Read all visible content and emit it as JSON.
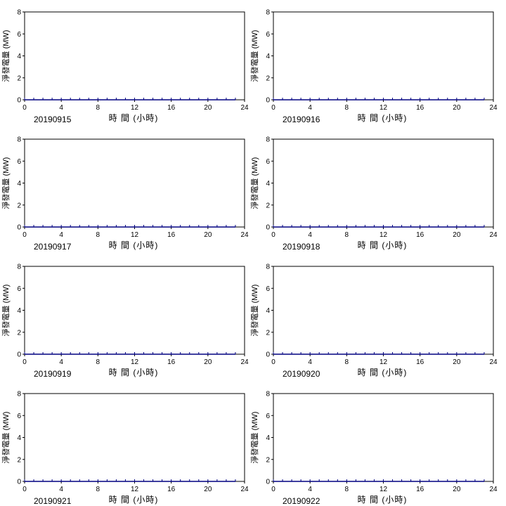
{
  "chart_data": [
    {
      "type": "line",
      "date_label": "20190915",
      "xlabel": "時 間 (小時)",
      "ylabel": "淨發電量 (MW)",
      "xlim": [
        0,
        24
      ],
      "ylim": [
        0,
        8
      ],
      "xticks": [
        0,
        4,
        8,
        12,
        16,
        20,
        24
      ],
      "yticks": [
        0,
        2,
        4,
        6,
        8
      ],
      "grid": false,
      "series": [
        {
          "x": [
            0,
            1,
            2,
            3,
            4,
            5,
            6,
            7,
            8,
            9,
            10,
            11,
            12,
            13,
            14,
            15,
            16,
            17,
            18,
            19,
            20,
            21,
            22,
            23
          ],
          "values": [
            0,
            0,
            0,
            0,
            0,
            0,
            0,
            0,
            0,
            0,
            0,
            0,
            0,
            0,
            0,
            0,
            0,
            0,
            0,
            0,
            0,
            0,
            0,
            0
          ]
        }
      ]
    },
    {
      "type": "line",
      "date_label": "20190916",
      "xlabel": "時 間 (小時)",
      "ylabel": "淨發電量 (MW)",
      "xlim": [
        0,
        24
      ],
      "ylim": [
        0,
        8
      ],
      "xticks": [
        0,
        4,
        8,
        12,
        16,
        20,
        24
      ],
      "yticks": [
        0,
        2,
        4,
        6,
        8
      ],
      "grid": false,
      "series": [
        {
          "x": [
            0,
            1,
            2,
            3,
            4,
            5,
            6,
            7,
            8,
            9,
            10,
            11,
            12,
            13,
            14,
            15,
            16,
            17,
            18,
            19,
            20,
            21,
            22,
            23
          ],
          "values": [
            0,
            0,
            0,
            0,
            0,
            0,
            0,
            0,
            0,
            0,
            0,
            0,
            0,
            0,
            0,
            0,
            0,
            0,
            0,
            0,
            0,
            0,
            0,
            0
          ]
        }
      ]
    },
    {
      "type": "line",
      "date_label": "20190917",
      "xlabel": "時 間 (小時)",
      "ylabel": "淨發電量 (MW)",
      "xlim": [
        0,
        24
      ],
      "ylim": [
        0,
        8
      ],
      "xticks": [
        0,
        4,
        8,
        12,
        16,
        20,
        24
      ],
      "yticks": [
        0,
        2,
        4,
        6,
        8
      ],
      "grid": false,
      "series": [
        {
          "x": [
            0,
            1,
            2,
            3,
            4,
            5,
            6,
            7,
            8,
            9,
            10,
            11,
            12,
            13,
            14,
            15,
            16,
            17,
            18,
            19,
            20,
            21,
            22,
            23
          ],
          "values": [
            0,
            0,
            0,
            0,
            0,
            0,
            0,
            0,
            0,
            0,
            0,
            0,
            0,
            0,
            0,
            0,
            0,
            0,
            0,
            0,
            0,
            0,
            0,
            0
          ]
        }
      ]
    },
    {
      "type": "line",
      "date_label": "20190918",
      "xlabel": "時 間 (小時)",
      "ylabel": "淨發電量 (MW)",
      "xlim": [
        0,
        24
      ],
      "ylim": [
        0,
        8
      ],
      "xticks": [
        0,
        4,
        8,
        12,
        16,
        20,
        24
      ],
      "yticks": [
        0,
        2,
        4,
        6,
        8
      ],
      "grid": false,
      "series": [
        {
          "x": [
            0,
            1,
            2,
            3,
            4,
            5,
            6,
            7,
            8,
            9,
            10,
            11,
            12,
            13,
            14,
            15,
            16,
            17,
            18,
            19,
            20,
            21,
            22,
            23
          ],
          "values": [
            0,
            0,
            0,
            0,
            0,
            0,
            0,
            0,
            0,
            0,
            0,
            0,
            0,
            0,
            0,
            0,
            0,
            0,
            0,
            0,
            0,
            0,
            0,
            0
          ]
        }
      ]
    },
    {
      "type": "line",
      "date_label": "20190919",
      "xlabel": "時 間 (小時)",
      "ylabel": "淨發電量 (MW)",
      "xlim": [
        0,
        24
      ],
      "ylim": [
        0,
        8
      ],
      "xticks": [
        0,
        4,
        8,
        12,
        16,
        20,
        24
      ],
      "yticks": [
        0,
        2,
        4,
        6,
        8
      ],
      "grid": false,
      "series": [
        {
          "x": [
            0,
            1,
            2,
            3,
            4,
            5,
            6,
            7,
            8,
            9,
            10,
            11,
            12,
            13,
            14,
            15,
            16,
            17,
            18,
            19,
            20,
            21,
            22,
            23
          ],
          "values": [
            0,
            0,
            0,
            0,
            0,
            0,
            0,
            0,
            0,
            0,
            0,
            0,
            0,
            0,
            0,
            0,
            0,
            0,
            0,
            0,
            0,
            0,
            0,
            0
          ]
        }
      ]
    },
    {
      "type": "line",
      "date_label": "20190920",
      "xlabel": "時 間 (小時)",
      "ylabel": "淨發電量 (MW)",
      "xlim": [
        0,
        24
      ],
      "ylim": [
        0,
        8
      ],
      "xticks": [
        0,
        4,
        8,
        12,
        16,
        20,
        24
      ],
      "yticks": [
        0,
        2,
        4,
        6,
        8
      ],
      "grid": false,
      "series": [
        {
          "x": [
            0,
            1,
            2,
            3,
            4,
            5,
            6,
            7,
            8,
            9,
            10,
            11,
            12,
            13,
            14,
            15,
            16,
            17,
            18,
            19,
            20,
            21,
            22,
            23
          ],
          "values": [
            0,
            0,
            0,
            0,
            0,
            0,
            0,
            0,
            0,
            0,
            0,
            0,
            0,
            0,
            0,
            0,
            0,
            0,
            0,
            0,
            0,
            0,
            0,
            0
          ]
        }
      ]
    },
    {
      "type": "line",
      "date_label": "20190921",
      "xlabel": "時 間 (小時)",
      "ylabel": "淨發電量 (MW)",
      "xlim": [
        0,
        24
      ],
      "ylim": [
        0,
        8
      ],
      "xticks": [
        0,
        4,
        8,
        12,
        16,
        20,
        24
      ],
      "yticks": [
        0,
        2,
        4,
        6,
        8
      ],
      "grid": false,
      "series": [
        {
          "x": [
            0,
            1,
            2,
            3,
            4,
            5,
            6,
            7,
            8,
            9,
            10,
            11,
            12,
            13,
            14,
            15,
            16,
            17,
            18,
            19,
            20,
            21,
            22,
            23
          ],
          "values": [
            0,
            0,
            0,
            0,
            0,
            0,
            0,
            0,
            0,
            0,
            0,
            0,
            0,
            0,
            0,
            0,
            0,
            0,
            0,
            0,
            0,
            0,
            0,
            0
          ]
        }
      ]
    },
    {
      "type": "line",
      "date_label": "20190922",
      "xlabel": "時 間 (小時)",
      "ylabel": "淨發電量 (MW)",
      "xlim": [
        0,
        24
      ],
      "ylim": [
        0,
        8
      ],
      "xticks": [
        0,
        4,
        8,
        12,
        16,
        20,
        24
      ],
      "yticks": [
        0,
        2,
        4,
        6,
        8
      ],
      "grid": false,
      "series": [
        {
          "x": [
            0,
            1,
            2,
            3,
            4,
            5,
            6,
            7,
            8,
            9,
            10,
            11,
            12,
            13,
            14,
            15,
            16,
            17,
            18,
            19,
            20,
            21,
            22,
            23
          ],
          "values": [
            0,
            0,
            0,
            0,
            0,
            0,
            0,
            0,
            0,
            0,
            0,
            0,
            0,
            0,
            0,
            0,
            0,
            0,
            0,
            0,
            0,
            0,
            0,
            0
          ]
        }
      ]
    }
  ],
  "colors": {
    "series": "#000080",
    "axis": "#000000",
    "background": "#ffffff"
  }
}
